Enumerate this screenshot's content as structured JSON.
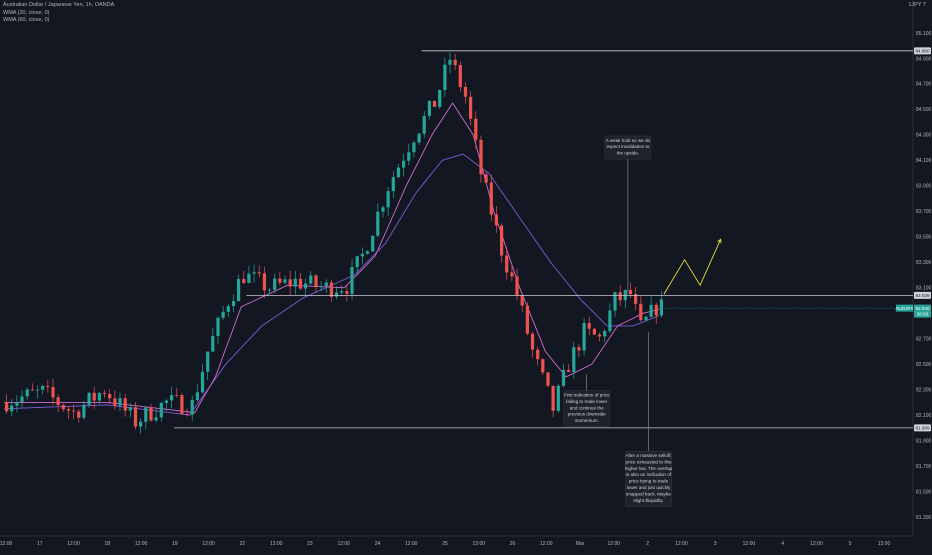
{
  "header": {
    "symbol_title": "Australian Dollar / Japanese Yen, 1h, OANDA",
    "indicator_1": "WMA (20, close, 0)",
    "indicator_2": "WMA (60, close, 0)",
    "pair_label": "1JPY 7"
  },
  "colors": {
    "background": "#131722",
    "bull": "#26a69a",
    "bear": "#ef5350",
    "wma_fast": "#d36bd0",
    "wma_slow": "#7d5bd6",
    "level_line": "#c9ccd3",
    "projection": "#e9e233",
    "price_tag": "#26a69a"
  },
  "chart_data": {
    "type": "candlestick",
    "title": "Australian Dollar / Japanese Yen, 1h, OANDA",
    "ylim": [
      81.3,
      85.22
    ],
    "y_ticks": [
      "85.100",
      "84.900",
      "84.700",
      "84.500",
      "84.300",
      "84.100",
      "83.900",
      "83.700",
      "83.500",
      "83.300",
      "83.100",
      "82.900",
      "82.700",
      "82.500",
      "82.300",
      "82.100",
      "81.900",
      "81.700",
      "81.500",
      "81.300"
    ],
    "x_ticks": [
      "12:00",
      "17",
      "12:00",
      "18",
      "12:00",
      "19",
      "12:00",
      "22",
      "12:00",
      "23",
      "12:00",
      "24",
      "12:00",
      "25",
      "12:00",
      "26",
      "12:00",
      "Mar",
      "12:00",
      "2",
      "12:00",
      "3",
      "12:00",
      "4",
      "12:00",
      "5",
      "12:00"
    ],
    "price_path": [
      {
        "t": 0,
        "p": 82.2
      },
      {
        "t": 8,
        "p": 82.28
      },
      {
        "t": 14,
        "p": 82.12
      },
      {
        "t": 20,
        "p": 82.3
      },
      {
        "t": 26,
        "p": 82.05
      },
      {
        "t": 32,
        "p": 82.2
      },
      {
        "t": 37,
        "p": 82.18
      },
      {
        "t": 40,
        "p": 82.6
      },
      {
        "t": 44,
        "p": 83.0
      },
      {
        "t": 47,
        "p": 83.2
      },
      {
        "t": 52,
        "p": 83.1
      },
      {
        "t": 57,
        "p": 83.15
      },
      {
        "t": 63,
        "p": 83.1
      },
      {
        "t": 67,
        "p": 83.12
      },
      {
        "t": 70,
        "p": 83.35
      },
      {
        "t": 75,
        "p": 83.9
      },
      {
        "t": 80,
        "p": 84.3
      },
      {
        "t": 84,
        "p": 84.55
      },
      {
        "t": 87,
        "p": 84.9
      },
      {
        "t": 90,
        "p": 84.6
      },
      {
        "t": 93,
        "p": 84.0
      },
      {
        "t": 97,
        "p": 83.4
      },
      {
        "t": 100,
        "p": 83.05
      },
      {
        "t": 103,
        "p": 82.6
      },
      {
        "t": 107,
        "p": 82.15
      },
      {
        "t": 110,
        "p": 82.5
      },
      {
        "t": 113,
        "p": 82.75
      },
      {
        "t": 116,
        "p": 82.7
      },
      {
        "t": 119,
        "p": 83.0
      },
      {
        "t": 122,
        "p": 83.05
      },
      {
        "t": 124,
        "p": 82.78
      },
      {
        "t": 127,
        "p": 82.95
      }
    ],
    "wma_20": [
      {
        "t": 0,
        "p": 82.2
      },
      {
        "t": 20,
        "p": 82.2
      },
      {
        "t": 37,
        "p": 82.12
      },
      {
        "t": 41,
        "p": 82.4
      },
      {
        "t": 46,
        "p": 82.95
      },
      {
        "t": 55,
        "p": 83.12
      },
      {
        "t": 66,
        "p": 83.1
      },
      {
        "t": 72,
        "p": 83.35
      },
      {
        "t": 78,
        "p": 83.9
      },
      {
        "t": 83,
        "p": 84.3
      },
      {
        "t": 87,
        "p": 84.55
      },
      {
        "t": 91,
        "p": 84.3
      },
      {
        "t": 95,
        "p": 83.7
      },
      {
        "t": 100,
        "p": 83.1
      },
      {
        "t": 105,
        "p": 82.6
      },
      {
        "t": 109,
        "p": 82.4
      },
      {
        "t": 114,
        "p": 82.5
      },
      {
        "t": 119,
        "p": 82.8
      },
      {
        "t": 124,
        "p": 82.9
      },
      {
        "t": 127,
        "p": 82.93
      }
    ],
    "wma_60": [
      {
        "t": 0,
        "p": 82.15
      },
      {
        "t": 20,
        "p": 82.18
      },
      {
        "t": 36,
        "p": 82.1
      },
      {
        "t": 43,
        "p": 82.5
      },
      {
        "t": 50,
        "p": 82.8
      },
      {
        "t": 58,
        "p": 83.02
      },
      {
        "t": 68,
        "p": 83.2
      },
      {
        "t": 74,
        "p": 83.45
      },
      {
        "t": 80,
        "p": 83.85
      },
      {
        "t": 85,
        "p": 84.1
      },
      {
        "t": 89,
        "p": 84.15
      },
      {
        "t": 94,
        "p": 84.0
      },
      {
        "t": 100,
        "p": 83.65
      },
      {
        "t": 106,
        "p": 83.3
      },
      {
        "t": 112,
        "p": 83.0
      },
      {
        "t": 117,
        "p": 82.8
      },
      {
        "t": 122,
        "p": 82.8
      },
      {
        "t": 127,
        "p": 82.88
      }
    ],
    "levels": [
      {
        "price": 84.96,
        "label": "84.960",
        "x_from_t": 81
      },
      {
        "price": 83.04,
        "label": "83.039",
        "x_from_t": 47
      },
      {
        "price": 82.0,
        "label": "81.999",
        "x_from_t": 33
      }
    ],
    "current_price": {
      "price": 82.94,
      "label": "AUDJPY",
      "value": "82.940",
      "sub": "38:59"
    },
    "projection": [
      {
        "t": 128,
        "p": 83.05
      },
      {
        "t": 132,
        "p": 83.32
      },
      {
        "t": 135,
        "p": 83.12
      },
      {
        "t": 139,
        "p": 83.48
      }
    ],
    "annotations": [
      {
        "id": "note-weak-hold",
        "anchor_t": 121,
        "anchor_p": 83.05,
        "box_t": 121,
        "box_p": 84.2,
        "lines": [
          "A weak hold so we do",
          "expect invalidation to",
          "the upside."
        ]
      },
      {
        "id": "note-first-indication",
        "anchor_t": 113,
        "anchor_p": 82.42,
        "box_t": 113,
        "box_p": 82.15,
        "lines": [
          "First indication of price",
          "failing to trade lower",
          "and continue the",
          "previous downside",
          "momentum."
        ]
      },
      {
        "id": "note-massive-selloff",
        "anchor_t": 125,
        "anchor_p": 82.75,
        "box_t": 125,
        "box_p": 81.6,
        "lines": [
          "After a massive selloff,",
          "price exhausted to this",
          "higher low. The overlap",
          "is also an indication of",
          "price trying to trade",
          "lower and just quickly",
          "snapped back. Maybe",
          "slight illiquidity."
        ]
      }
    ]
  }
}
